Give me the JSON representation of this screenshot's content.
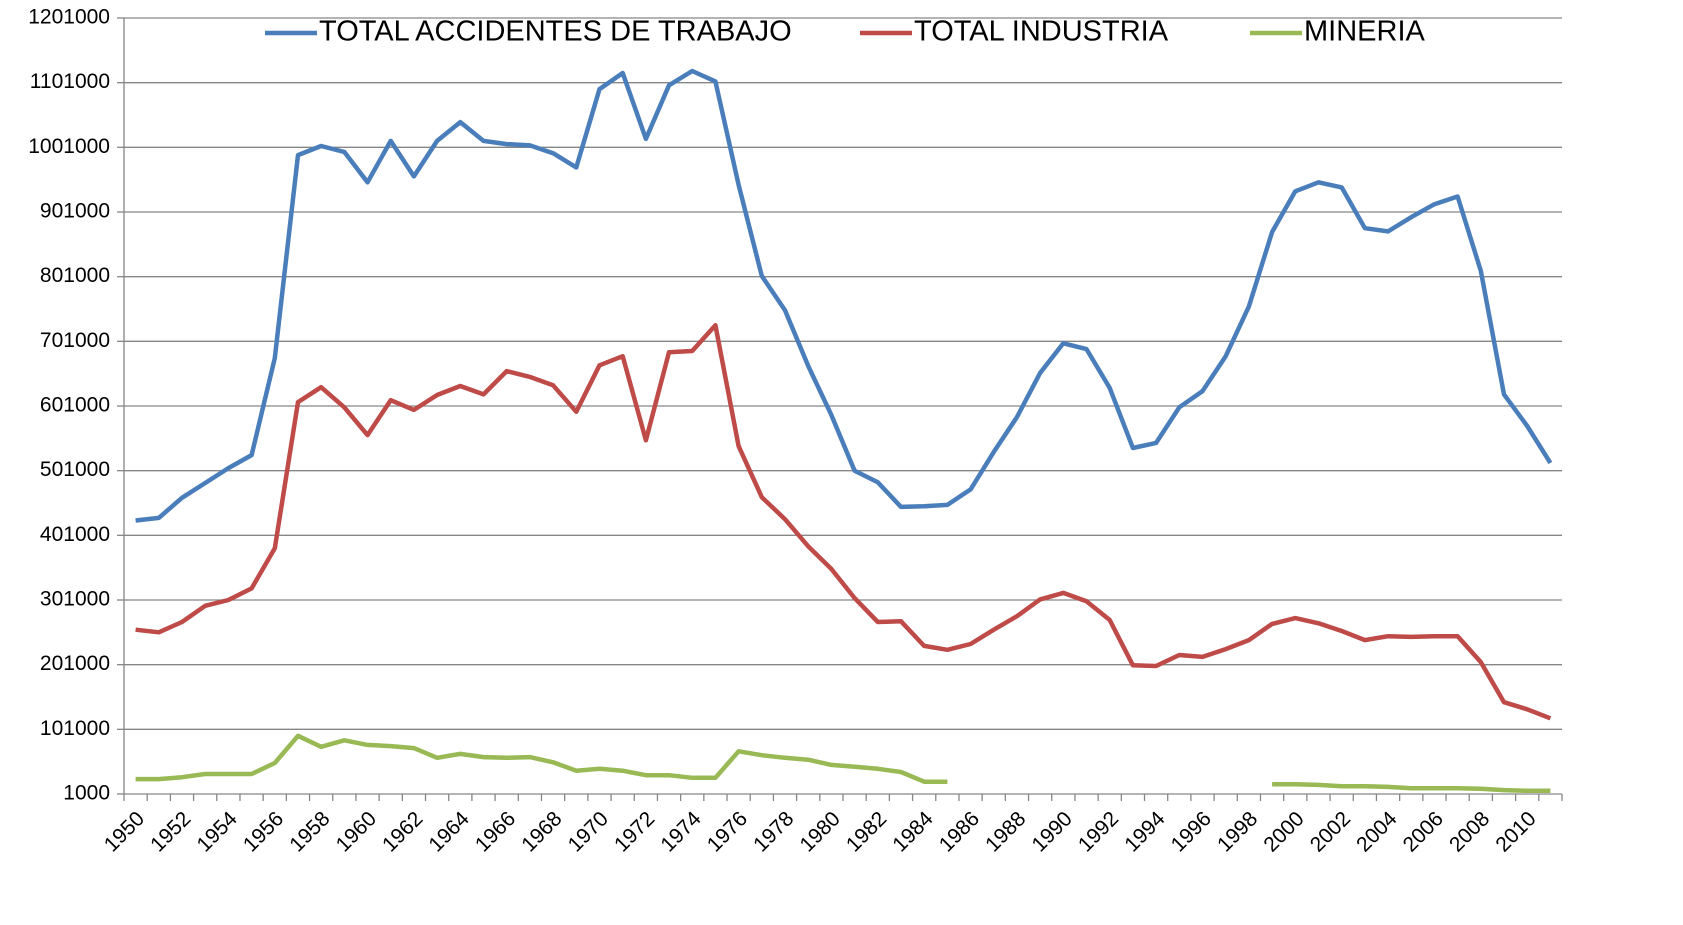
{
  "chart_data": {
    "type": "line",
    "categories": [
      "1950",
      null,
      "1952",
      null,
      "1954",
      null,
      "1956",
      null,
      "1958",
      null,
      "1960",
      null,
      "1962",
      null,
      "1964",
      null,
      "1966",
      null,
      "1968",
      null,
      "1970",
      null,
      "1972",
      null,
      "1974",
      null,
      "1976",
      null,
      "1978",
      null,
      "1980",
      null,
      "1982",
      null,
      "1984",
      null,
      "1986",
      null,
      "1988",
      null,
      "1990",
      null,
      "1992",
      null,
      "1994",
      null,
      "1996",
      null,
      "1998",
      null,
      "2000",
      null,
      "2002",
      null,
      "2004",
      null,
      "2006",
      null,
      "2008",
      null,
      "2010",
      null
    ],
    "series": [
      {
        "name": "TOTAL ACCIDENTES DE TRABAJO",
        "color": "#4a7ebb",
        "values": [
          424000,
          428000,
          459000,
          482000,
          505000,
          525000,
          675000,
          989000,
          1003000,
          994000,
          947000,
          1011000,
          956000,
          1011000,
          1040000,
          1011000,
          1006000,
          1004000,
          992000,
          970000,
          1091000,
          1116000,
          1014000,
          1097000,
          1119000,
          1103000,
          943000,
          802000,
          749000,
          663000,
          587000,
          501000,
          483000,
          445000,
          446000,
          448000,
          472000,
          530000,
          584000,
          652000,
          698000,
          689000,
          629000,
          536000,
          544000,
          599000,
          624000,
          678000,
          755000,
          870000,
          933000,
          947000,
          939000,
          876000,
          871000,
          893000,
          913000,
          925000,
          810000,
          619000,
          570000,
          513000
        ]
      },
      {
        "name": "TOTAL INDUSTRIA",
        "color": "#be4b48",
        "values": [
          255000,
          251000,
          267000,
          292000,
          301000,
          319000,
          381000,
          607000,
          630000,
          599000,
          556000,
          610000,
          595000,
          618000,
          632000,
          619000,
          655000,
          646000,
          633000,
          592000,
          664000,
          678000,
          548000,
          684000,
          686000,
          726000,
          539000,
          460000,
          426000,
          384000,
          349000,
          304000,
          267000,
          268000,
          230000,
          224000,
          233000,
          255000,
          276000,
          302000,
          312000,
          299000,
          270000,
          200000,
          199000,
          216000,
          213000,
          225000,
          239000,
          264000,
          273000,
          265000,
          253000,
          239000,
          245000,
          244000,
          245000,
          245000,
          205000,
          143000,
          132000,
          118000
        ]
      },
      {
        "name": "MINERIA",
        "color": "#98b954",
        "values": [
          24000,
          24000,
          27000,
          32000,
          32000,
          32000,
          49000,
          91000,
          74000,
          84000,
          77000,
          75000,
          72000,
          57000,
          63000,
          58000,
          57000,
          58000,
          50000,
          37000,
          40000,
          37000,
          30000,
          30000,
          26000,
          26000,
          67000,
          61000,
          57000,
          54000,
          46000,
          43000,
          40000,
          35000,
          20000,
          20000,
          null,
          null,
          null,
          null,
          null,
          null,
          null,
          null,
          null,
          null,
          null,
          null,
          null,
          16000,
          16000,
          15000,
          13000,
          13000,
          12000,
          10000,
          10000,
          10000,
          9000,
          7000,
          6000,
          6000
        ]
      }
    ],
    "ylim": [
      1000,
      1201000
    ],
    "yticks": [
      1000,
      101000,
      201000,
      301000,
      401000,
      501000,
      601000,
      701000,
      801000,
      901000,
      1001000,
      1101000,
      1201000
    ],
    "grid": true,
    "legend": "top"
  }
}
